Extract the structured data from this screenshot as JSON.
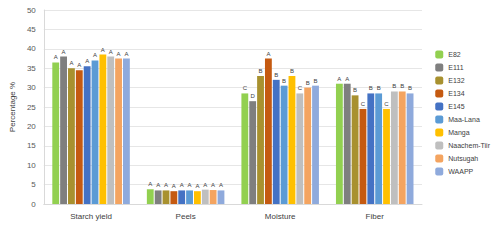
{
  "chart_data": {
    "type": "bar",
    "y_label": "Percentage %",
    "categories": [
      "Starch yield",
      "Peels",
      "Moisture",
      "Fiber"
    ],
    "ylim": [
      0,
      50
    ],
    "yticks": [
      0,
      5,
      10,
      15,
      20,
      25,
      30,
      35,
      40,
      45,
      50
    ],
    "grid": true,
    "legend": "right",
    "series": [
      {
        "name": "E82",
        "color": "#92d050",
        "values": [
          36.5,
          3.8,
          28.5,
          31
        ],
        "annotations": [
          "A",
          "A",
          "C",
          "A"
        ]
      },
      {
        "name": "E111",
        "color": "#7f7f7f",
        "values": [
          38,
          3.5,
          26.5,
          31
        ],
        "annotations": [
          "A",
          "A",
          "D",
          "A"
        ]
      },
      {
        "name": "E132",
        "color": "#a8912f",
        "values": [
          35,
          3.5,
          33,
          28
        ],
        "annotations": [
          "A",
          "A",
          "B",
          "B"
        ]
      },
      {
        "name": "E134",
        "color": "#c55a11",
        "values": [
          34.5,
          3.3,
          37.5,
          24.5
        ],
        "annotations": [
          "A",
          "A",
          "A",
          "C"
        ]
      },
      {
        "name": "E145",
        "color": "#4472c4",
        "values": [
          35.5,
          3.5,
          32,
          28.5
        ],
        "annotations": [
          "A",
          "A",
          "B",
          "B"
        ]
      },
      {
        "name": "Maa-Lana",
        "color": "#5b9bd5",
        "values": [
          37,
          3.5,
          30.5,
          28.5
        ],
        "annotations": [
          "A",
          "A",
          "B",
          "B"
        ]
      },
      {
        "name": "Manga",
        "color": "#ffc000",
        "values": [
          38.5,
          3.3,
          33,
          24.5
        ],
        "annotations": [
          "A",
          "A",
          "B",
          "C"
        ]
      },
      {
        "name": "Naachem-Tiir",
        "color": "#bfbfbf",
        "values": [
          38,
          3.7,
          28.5,
          29
        ],
        "annotations": [
          "A",
          "A",
          "C",
          "B"
        ]
      },
      {
        "name": "Nutsugah",
        "color": "#f4a460",
        "values": [
          37.5,
          3.6,
          30,
          29
        ],
        "annotations": [
          "A",
          "A",
          "B",
          "B"
        ]
      },
      {
        "name": "WAAPP",
        "color": "#8faadc",
        "values": [
          37.5,
          3.5,
          30.5,
          28.5
        ],
        "annotations": [
          "A",
          "A",
          "B",
          "B"
        ]
      }
    ]
  }
}
